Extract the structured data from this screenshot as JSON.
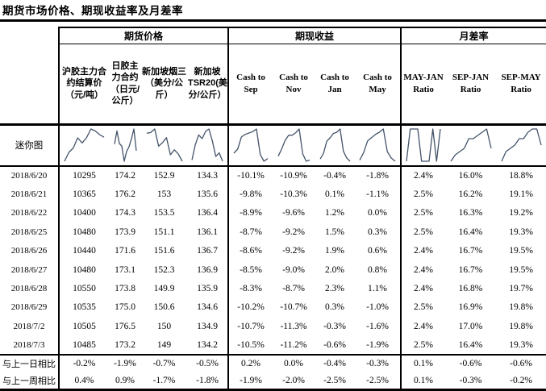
{
  "page_title": "期货市场价格、期现收益率及月差率",
  "table": {
    "groups": [
      {
        "label": "期货价格"
      },
      {
        "label": "期现收益"
      },
      {
        "label": "月差率"
      }
    ],
    "columns": [
      "沪胶主力合约结算价（元/吨）",
      "日胶主力合约（日元/公斤）",
      "新加坡烟三（美分/公斤）",
      "新加坡TSR20(美分/公斤）",
      "Cash to Sep",
      "Cash to Nov",
      "Cash to Jan",
      "Cash to May",
      "MAY-JAN Ratio",
      "SEP-JAN Ratio",
      "SEP-MAY Ratio"
    ],
    "sparkline_row_label": "迷你图",
    "rows": [
      {
        "date": "2018/6/20",
        "values": [
          "10295",
          "174.2",
          "152.9",
          "134.3",
          "-10.1%",
          "-10.9%",
          "-0.4%",
          "-1.8%",
          "2.4%",
          "16.0%",
          "18.8%"
        ]
      },
      {
        "date": "2018/6/21",
        "values": [
          "10365",
          "176.2",
          "153",
          "135.6",
          "-9.8%",
          "-10.3%",
          "0.1%",
          "-1.1%",
          "2.5%",
          "16.2%",
          "19.1%"
        ]
      },
      {
        "date": "2018/6/22",
        "values": [
          "10400",
          "174.3",
          "153.5",
          "136.4",
          "-8.9%",
          "-9.6%",
          "1.2%",
          "0.0%",
          "2.5%",
          "16.3%",
          "19.2%"
        ]
      },
      {
        "date": "2018/6/25",
        "values": [
          "10480",
          "173.9",
          "151.1",
          "136.1",
          "-8.7%",
          "-9.2%",
          "1.5%",
          "0.3%",
          "2.5%",
          "16.4%",
          "19.3%"
        ]
      },
      {
        "date": "2018/6/26",
        "values": [
          "10440",
          "171.6",
          "151.6",
          "136.7",
          "-8.6%",
          "-9.2%",
          "1.9%",
          "0.6%",
          "2.4%",
          "16.7%",
          "19.5%"
        ]
      },
      {
        "date": "2018/6/27",
        "values": [
          "10480",
          "173.1",
          "152.3",
          "136.9",
          "-8.5%",
          "-9.0%",
          "2.0%",
          "0.8%",
          "2.4%",
          "16.7%",
          "19.5%"
        ]
      },
      {
        "date": "2018/6/28",
        "values": [
          "10550",
          "173.8",
          "149.9",
          "135.9",
          "-8.3%",
          "-8.7%",
          "2.3%",
          "1.1%",
          "2.4%",
          "16.8%",
          "19.7%"
        ]
      },
      {
        "date": "2018/6/29",
        "values": [
          "10535",
          "175.0",
          "150.6",
          "134.6",
          "-10.2%",
          "-10.7%",
          "0.3%",
          "-1.0%",
          "2.5%",
          "16.9%",
          "19.8%"
        ]
      },
      {
        "date": "2018/7/2",
        "values": [
          "10505",
          "176.5",
          "150",
          "134.9",
          "-10.7%",
          "-11.3%",
          "-0.3%",
          "-1.6%",
          "2.4%",
          "17.0%",
          "19.8%"
        ]
      },
      {
        "date": "2018/7/3",
        "values": [
          "10485",
          "173.2",
          "149",
          "134.2",
          "-10.5%",
          "-11.2%",
          "-0.6%",
          "-1.9%",
          "2.5%",
          "16.4%",
          "19.3%"
        ]
      }
    ],
    "footer_rows": [
      {
        "label": "与上一日相比",
        "values": [
          "-0.2%",
          "-1.9%",
          "-0.7%",
          "-0.5%",
          "0.2%",
          "0.0%",
          "-0.4%",
          "-0.3%",
          "0.1%",
          "-0.6%",
          "-0.6%"
        ]
      },
      {
        "label": "与上一周相比",
        "values": [
          "0.4%",
          "0.9%",
          "-1.7%",
          "-1.8%",
          "-1.9%",
          "-2.0%",
          "-2.5%",
          "-2.5%",
          "0.1%",
          "-0.3%",
          "-0.2%"
        ]
      }
    ]
  },
  "chart_data": {
    "type": "line",
    "title": "迷你图",
    "x": [
      "2018/6/20",
      "2018/6/21",
      "2018/6/22",
      "2018/6/25",
      "2018/6/26",
      "2018/6/27",
      "2018/6/28",
      "2018/6/29",
      "2018/7/2",
      "2018/7/3"
    ],
    "legend_position": "none",
    "grid": false,
    "series": [
      {
        "name": "沪胶主力合约结算价（元/吨）",
        "values": [
          10295,
          10365,
          10400,
          10480,
          10440,
          10480,
          10550,
          10535,
          10505,
          10485
        ]
      },
      {
        "name": "日胶主力合约（日元/公斤）",
        "values": [
          174.2,
          176.2,
          174.3,
          173.9,
          171.6,
          173.1,
          173.8,
          175.0,
          176.5,
          173.2
        ]
      },
      {
        "name": "新加坡烟三（美分/公斤）",
        "values": [
          152.9,
          153,
          153.5,
          151.1,
          151.6,
          152.3,
          149.9,
          150.6,
          150,
          149
        ]
      },
      {
        "name": "新加坡TSR20(美分/公斤）",
        "values": [
          134.3,
          135.6,
          136.4,
          136.1,
          136.7,
          136.9,
          135.9,
          134.6,
          134.9,
          134.2
        ]
      },
      {
        "name": "Cash to Sep",
        "values": [
          -10.1,
          -9.8,
          -8.9,
          -8.7,
          -8.6,
          -8.5,
          -8.3,
          -10.2,
          -10.7,
          -10.5
        ]
      },
      {
        "name": "Cash to Nov",
        "values": [
          -10.9,
          -10.3,
          -9.6,
          -9.2,
          -9.2,
          -9.0,
          -8.7,
          -10.7,
          -11.3,
          -11.2
        ]
      },
      {
        "name": "Cash to Jan",
        "values": [
          -0.4,
          0.1,
          1.2,
          1.5,
          1.9,
          2.0,
          2.3,
          0.3,
          -0.3,
          -0.6
        ]
      },
      {
        "name": "Cash to May",
        "values": [
          -1.8,
          -1.1,
          0.0,
          0.3,
          0.6,
          0.8,
          1.1,
          -1.0,
          -1.6,
          -1.9
        ]
      },
      {
        "name": "MAY-JAN Ratio",
        "values": [
          2.4,
          2.5,
          2.5,
          2.5,
          2.4,
          2.4,
          2.4,
          2.5,
          2.4,
          2.5
        ]
      },
      {
        "name": "SEP-JAN Ratio",
        "values": [
          16.0,
          16.2,
          16.3,
          16.4,
          16.7,
          16.7,
          16.8,
          16.9,
          17.0,
          16.4
        ]
      },
      {
        "name": "SEP-MAY Ratio",
        "values": [
          18.8,
          19.1,
          19.2,
          19.3,
          19.5,
          19.5,
          19.7,
          19.8,
          19.8,
          19.3
        ]
      }
    ]
  },
  "colors": {
    "sparkline": "#44546A",
    "border": "#000000",
    "text": "#000000",
    "background": "#FFFFFF"
  }
}
